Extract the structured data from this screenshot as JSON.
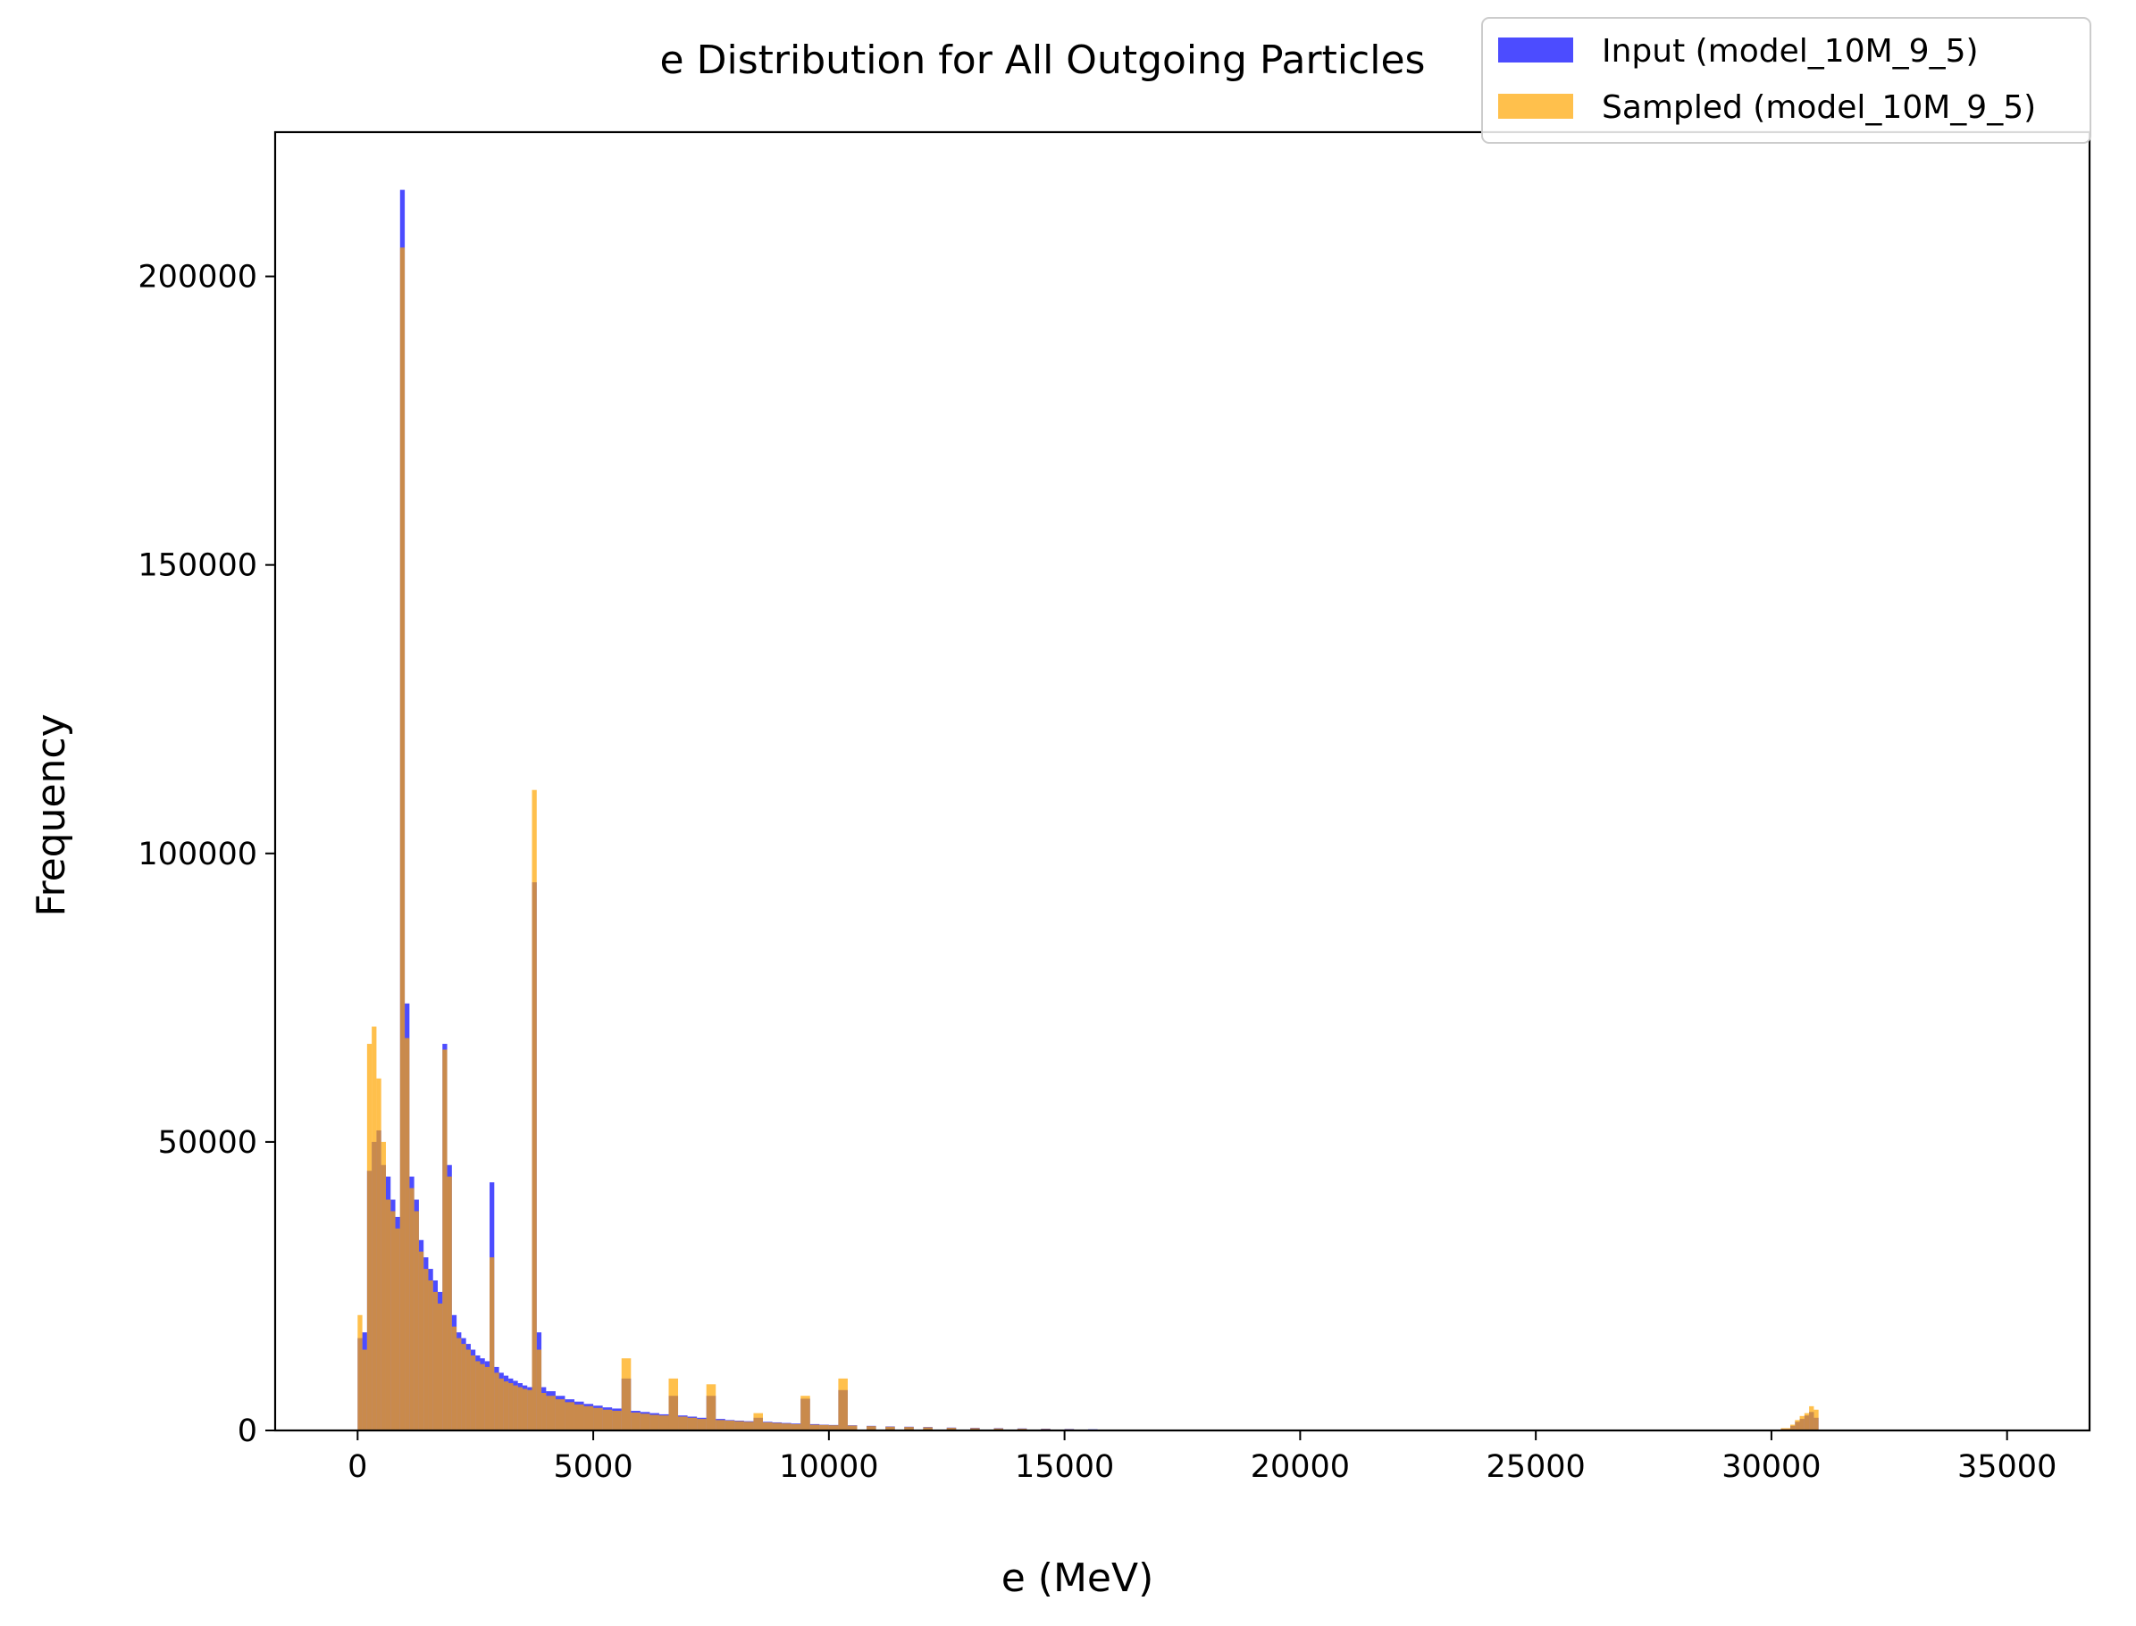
{
  "chart_data": {
    "type": "bar",
    "title": "e Distribution for All Outgoing Particles",
    "xlabel": "e (MeV)",
    "ylabel": "Frequency",
    "xlim": [
      -1750,
      36750
    ],
    "ylim": [
      0,
      225000
    ],
    "xticks": [
      0,
      5000,
      10000,
      15000,
      20000,
      25000,
      30000,
      35000
    ],
    "yticks": [
      0,
      50000,
      100000,
      150000,
      200000
    ],
    "grid": false,
    "legend_position": "top-right",
    "bin_width": 100,
    "series": [
      {
        "name": "Input (model_10M_9_5)",
        "color": "#0000ff",
        "opacity": 0.7,
        "bins": [
          [
            0,
            16000
          ],
          [
            100,
            17000
          ],
          [
            200,
            45000
          ],
          [
            300,
            50000
          ],
          [
            400,
            52000
          ],
          [
            500,
            46000
          ],
          [
            600,
            44000
          ],
          [
            700,
            40000
          ],
          [
            800,
            37000
          ],
          [
            900,
            215000
          ],
          [
            1000,
            74000
          ],
          [
            1100,
            44000
          ],
          [
            1200,
            40000
          ],
          [
            1300,
            33000
          ],
          [
            1400,
            30000
          ],
          [
            1500,
            28000
          ],
          [
            1600,
            26000
          ],
          [
            1700,
            24000
          ],
          [
            1800,
            67000
          ],
          [
            1900,
            46000
          ],
          [
            2000,
            20000
          ],
          [
            2100,
            17000
          ],
          [
            2200,
            16000
          ],
          [
            2300,
            15000
          ],
          [
            2400,
            14000
          ],
          [
            2500,
            13000
          ],
          [
            2600,
            12500
          ],
          [
            2700,
            12000
          ],
          [
            2800,
            43000
          ],
          [
            2900,
            11000
          ],
          [
            3000,
            10000
          ],
          [
            3100,
            9500
          ],
          [
            3200,
            9000
          ],
          [
            3300,
            8600
          ],
          [
            3400,
            8200
          ],
          [
            3500,
            7800
          ],
          [
            3600,
            7500
          ],
          [
            3700,
            95000
          ],
          [
            3800,
            17000
          ],
          [
            3900,
            7500
          ],
          [
            4000,
            6800
          ],
          [
            4200,
            6000
          ],
          [
            4400,
            5400
          ],
          [
            4600,
            5000
          ],
          [
            4800,
            4600
          ],
          [
            5000,
            4300
          ],
          [
            5200,
            4000
          ],
          [
            5400,
            3800
          ],
          [
            5600,
            9000
          ],
          [
            5800,
            3400
          ],
          [
            6000,
            3200
          ],
          [
            6200,
            3000
          ],
          [
            6400,
            2800
          ],
          [
            6600,
            6000
          ],
          [
            6800,
            2600
          ],
          [
            7000,
            2400
          ],
          [
            7200,
            2200
          ],
          [
            7400,
            6000
          ],
          [
            7600,
            2000
          ],
          [
            7800,
            1800
          ],
          [
            8000,
            1700
          ],
          [
            8200,
            1600
          ],
          [
            8400,
            2200
          ],
          [
            8600,
            1500
          ],
          [
            8800,
            1400
          ],
          [
            9000,
            1300
          ],
          [
            9200,
            1200
          ],
          [
            9400,
            5500
          ],
          [
            9600,
            1100
          ],
          [
            9800,
            1000
          ],
          [
            10000,
            950
          ],
          [
            10200,
            7000
          ],
          [
            10400,
            900
          ],
          [
            10800,
            800
          ],
          [
            11200,
            700
          ],
          [
            11600,
            650
          ],
          [
            12000,
            600
          ],
          [
            12500,
            500
          ],
          [
            13000,
            450
          ],
          [
            13500,
            400
          ],
          [
            14000,
            350
          ],
          [
            14500,
            300
          ],
          [
            15000,
            250
          ],
          [
            15500,
            200
          ],
          [
            16000,
            150
          ],
          [
            16500,
            120
          ],
          [
            17000,
            100
          ],
          [
            17500,
            50
          ],
          [
            30200,
            300
          ],
          [
            30400,
            800
          ],
          [
            30500,
            1500
          ],
          [
            30600,
            2000
          ],
          [
            30700,
            2600
          ],
          [
            30800,
            3200
          ],
          [
            30900,
            2200
          ]
        ]
      },
      {
        "name": "Sampled (model_10M_9_5)",
        "color": "#ffa500",
        "opacity": 0.7,
        "bins": [
          [
            0,
            20000
          ],
          [
            100,
            14000
          ],
          [
            200,
            67000
          ],
          [
            300,
            70000
          ],
          [
            400,
            61000
          ],
          [
            500,
            50000
          ],
          [
            600,
            40000
          ],
          [
            700,
            38000
          ],
          [
            800,
            35000
          ],
          [
            900,
            205000
          ],
          [
            1000,
            68000
          ],
          [
            1100,
            42000
          ],
          [
            1200,
            38000
          ],
          [
            1300,
            31000
          ],
          [
            1400,
            28000
          ],
          [
            1500,
            26000
          ],
          [
            1600,
            24000
          ],
          [
            1700,
            22000
          ],
          [
            1800,
            66000
          ],
          [
            1900,
            44000
          ],
          [
            2000,
            18000
          ],
          [
            2100,
            16000
          ],
          [
            2200,
            15000
          ],
          [
            2300,
            14000
          ],
          [
            2400,
            13000
          ],
          [
            2500,
            12000
          ],
          [
            2600,
            11500
          ],
          [
            2700,
            11000
          ],
          [
            2800,
            30000
          ],
          [
            2900,
            10000
          ],
          [
            3000,
            9000
          ],
          [
            3100,
            8500
          ],
          [
            3200,
            8200
          ],
          [
            3300,
            7800
          ],
          [
            3400,
            7500
          ],
          [
            3500,
            7200
          ],
          [
            3600,
            7000
          ],
          [
            3700,
            111000
          ],
          [
            3800,
            14000
          ],
          [
            3900,
            6500
          ],
          [
            4000,
            6000
          ],
          [
            4200,
            5400
          ],
          [
            4400,
            4900
          ],
          [
            4600,
            4500
          ],
          [
            4800,
            4200
          ],
          [
            5000,
            3900
          ],
          [
            5200,
            3600
          ],
          [
            5400,
            3400
          ],
          [
            5600,
            12500
          ],
          [
            5800,
            3100
          ],
          [
            6000,
            2900
          ],
          [
            6200,
            2700
          ],
          [
            6400,
            2600
          ],
          [
            6600,
            9000
          ],
          [
            6800,
            2400
          ],
          [
            7000,
            2200
          ],
          [
            7200,
            2000
          ],
          [
            7400,
            8000
          ],
          [
            7600,
            1800
          ],
          [
            7800,
            1700
          ],
          [
            8000,
            1600
          ],
          [
            8200,
            1500
          ],
          [
            8400,
            3000
          ],
          [
            8600,
            1400
          ],
          [
            8800,
            1300
          ],
          [
            9000,
            1200
          ],
          [
            9200,
            1100
          ],
          [
            9400,
            6000
          ],
          [
            9600,
            1000
          ],
          [
            9800,
            950
          ],
          [
            10000,
            900
          ],
          [
            10200,
            9000
          ],
          [
            10400,
            850
          ],
          [
            10800,
            750
          ],
          [
            11200,
            650
          ],
          [
            11600,
            600
          ],
          [
            12000,
            550
          ],
          [
            12500,
            450
          ],
          [
            13000,
            400
          ],
          [
            13500,
            350
          ],
          [
            14000,
            300
          ],
          [
            14500,
            250
          ],
          [
            15000,
            200
          ],
          [
            15500,
            150
          ],
          [
            16000,
            120
          ],
          [
            16500,
            100
          ],
          [
            17000,
            80
          ],
          [
            17500,
            40
          ],
          [
            30200,
            400
          ],
          [
            30400,
            1000
          ],
          [
            30500,
            1800
          ],
          [
            30600,
            2500
          ],
          [
            30700,
            3000
          ],
          [
            30800,
            4200
          ],
          [
            30900,
            3600
          ]
        ]
      }
    ]
  }
}
